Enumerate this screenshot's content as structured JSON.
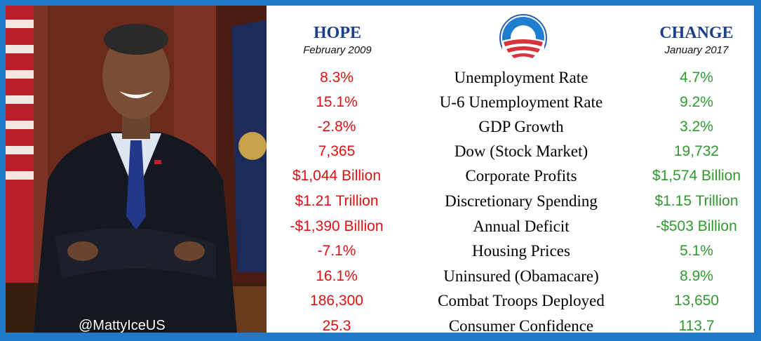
{
  "handle": "@MattyIceUS",
  "left_header": {
    "title": "HOPE",
    "date": "February 2009"
  },
  "right_header": {
    "title": "CHANGE",
    "date": "January 2017"
  },
  "colors": {
    "frame": "#1f78c8",
    "old": "#e01010",
    "new": "#2e9a2e",
    "header": "#1b3f8a"
  },
  "rows": [
    {
      "old": "8.3%",
      "label": "Unemployment Rate",
      "new": "4.7%"
    },
    {
      "old": "15.1%",
      "label": "U-6 Unemployment Rate",
      "new": "9.2%"
    },
    {
      "old": "-2.8%",
      "label": "GDP Growth",
      "new": "3.2%"
    },
    {
      "old": "7,365",
      "label": "Dow (Stock Market)",
      "new": "19,732"
    },
    {
      "old": "$1,044 Billion",
      "label": "Corporate Profits",
      "new": "$1,574 Billion"
    },
    {
      "old": "$1.21 Trillion",
      "label": "Discretionary Spending",
      "new": "$1.15 Trillion"
    },
    {
      "old": "-$1,390 Billion",
      "label": "Annual Deficit",
      "new": "-$503 Billion"
    },
    {
      "old": "-7.1%",
      "label": "Housing Prices",
      "new": "5.1%"
    },
    {
      "old": "16.1%",
      "label": "Uninsured (Obamacare)",
      "new": "8.9%"
    },
    {
      "old": "186,300",
      "label": "Combat Troops Deployed",
      "new": "13,650"
    },
    {
      "old": "25.3",
      "label": "Consumer Confidence",
      "new": "113.7"
    }
  ]
}
